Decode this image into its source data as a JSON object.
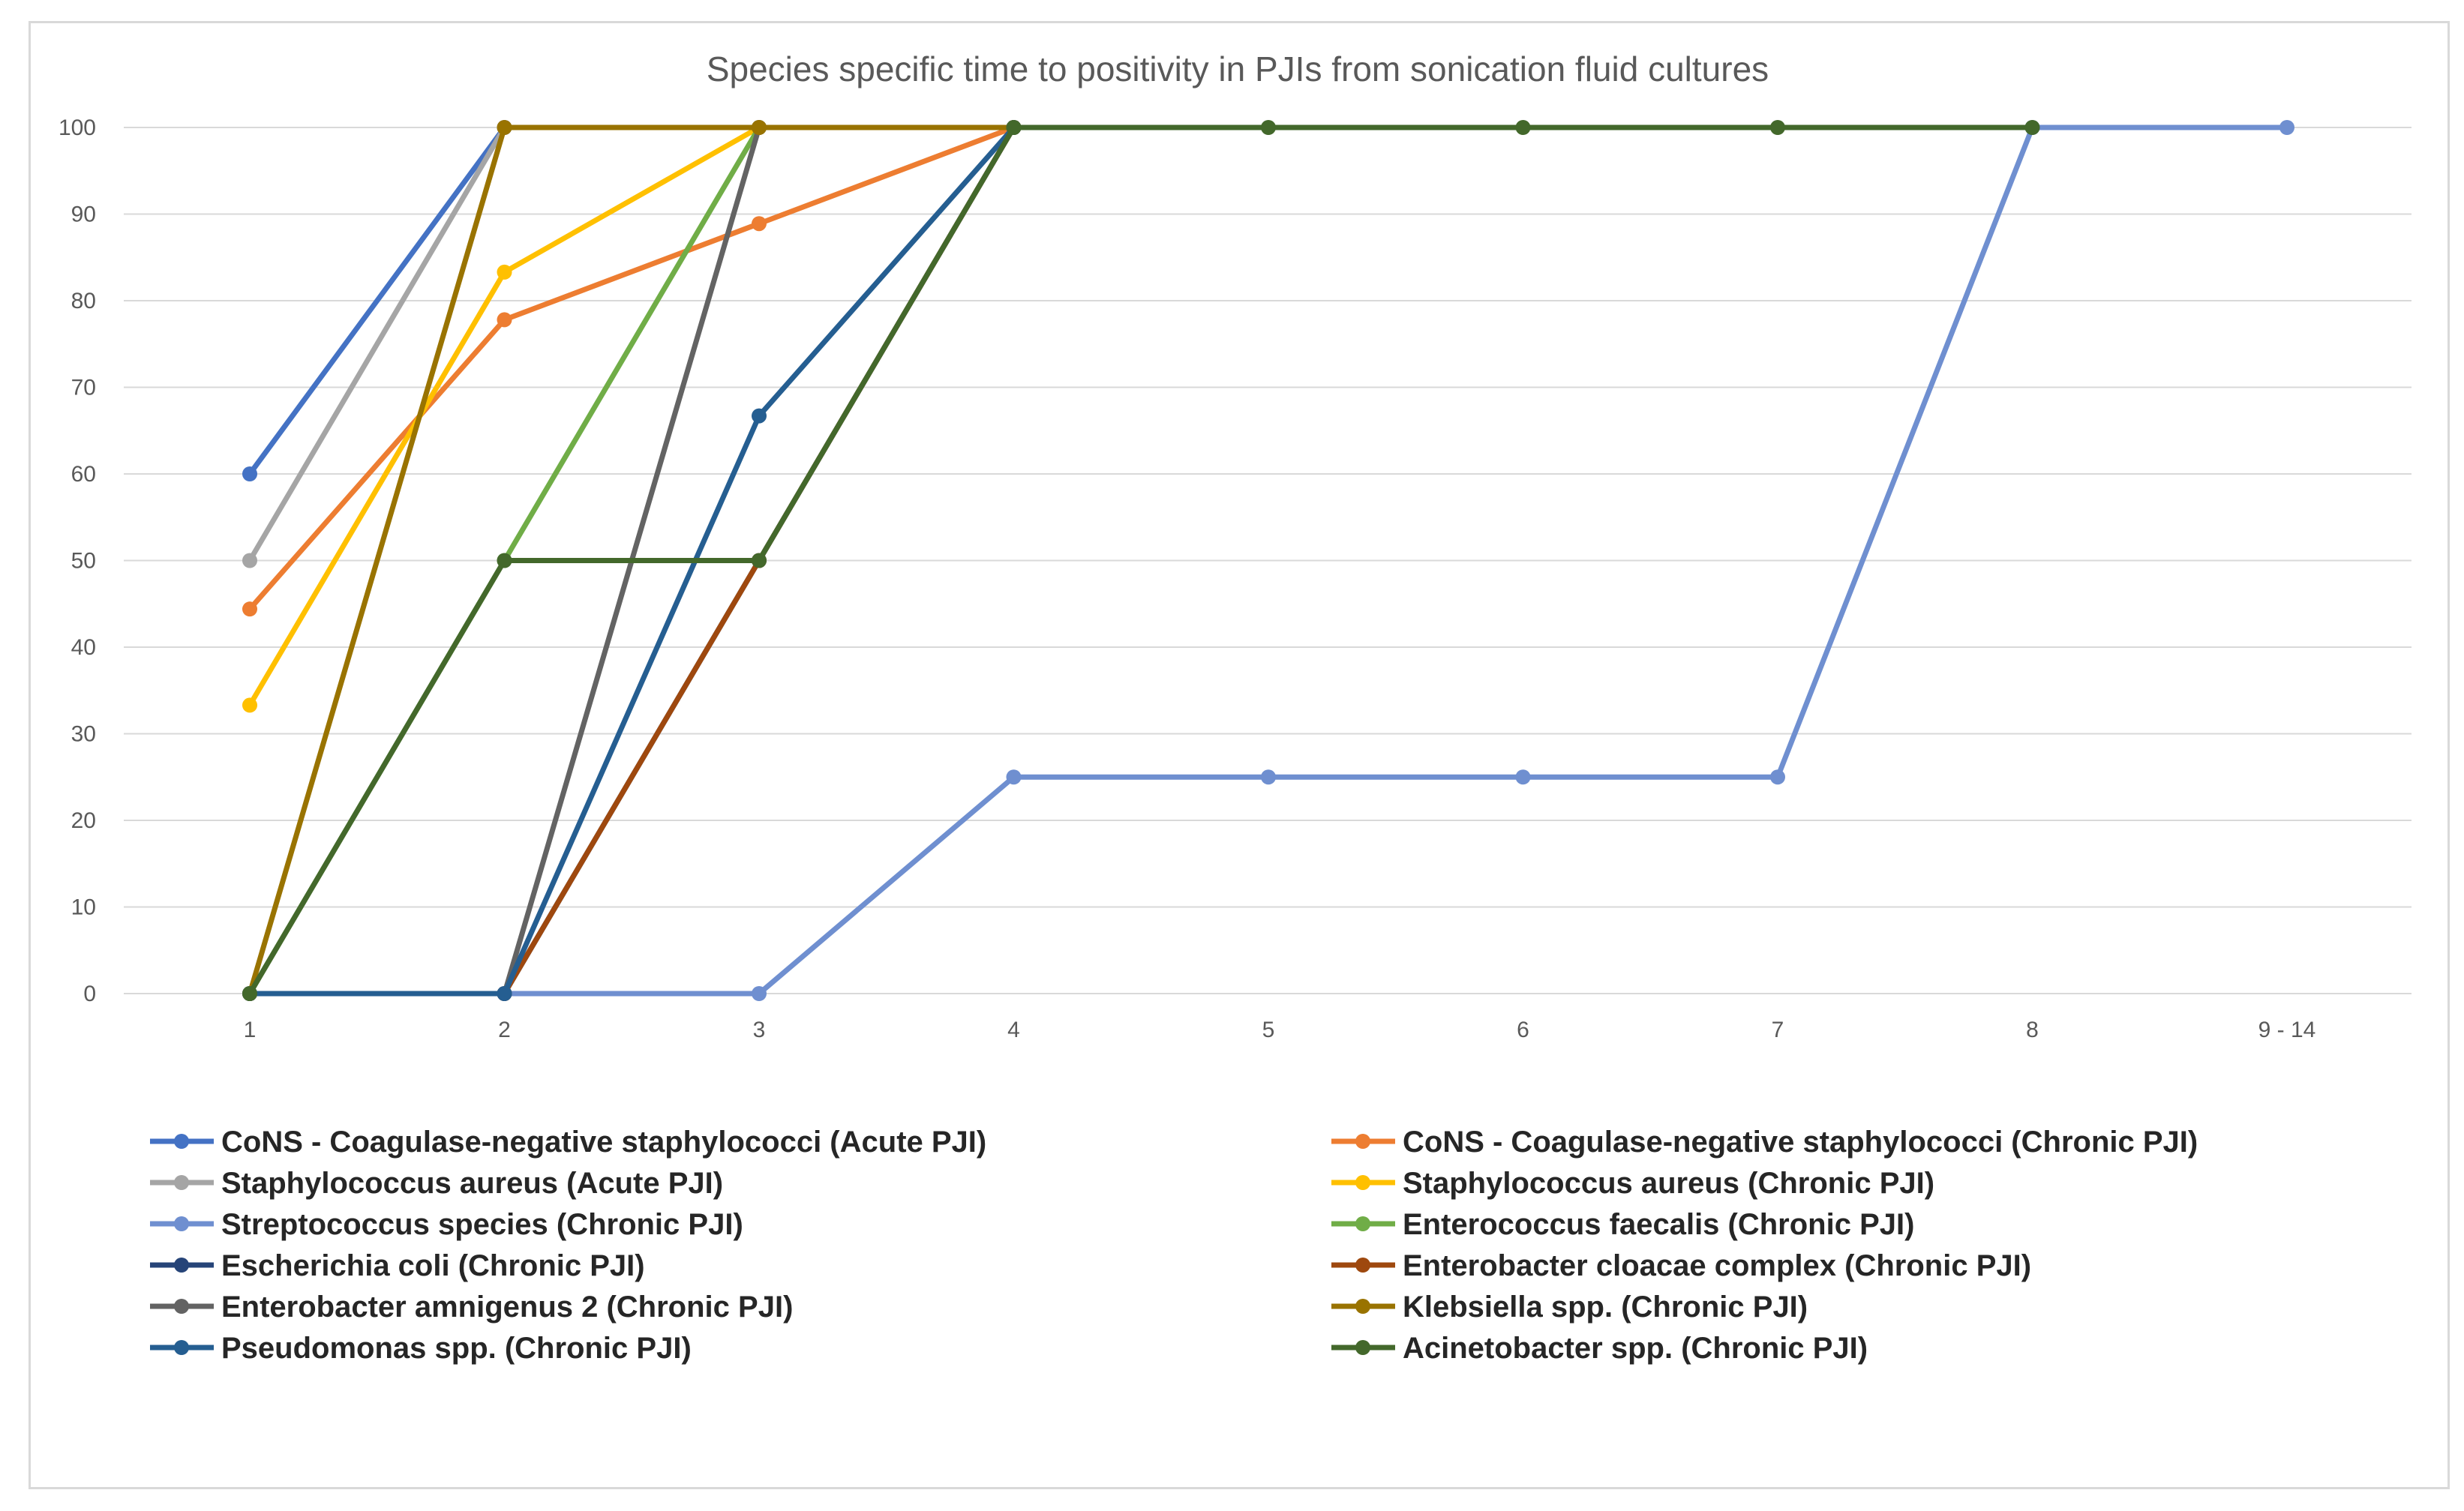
{
  "chart_data": {
    "type": "line",
    "title": "Species specific time to positivity in PJIs from sonication fluid cultures",
    "xlabel": "",
    "ylabel": "",
    "categories": [
      "1",
      "2",
      "3",
      "4",
      "5",
      "6",
      "7",
      "8",
      "9 - 14"
    ],
    "ylim": [
      0,
      100
    ],
    "yticks": [
      0,
      10,
      20,
      30,
      40,
      50,
      60,
      70,
      80,
      90,
      100
    ],
    "grid": true,
    "legend_position": "bottom",
    "series": [
      {
        "name": "CoNS - Coagulase-negative staphylococci (Acute PJI)",
        "color": "#4472c4",
        "values": [
          60,
          100,
          null,
          null,
          null,
          null,
          null,
          null,
          null
        ]
      },
      {
        "name": "CoNS - Coagulase-negative staphylococci (Chronic PJI)",
        "color": "#ed7d31",
        "values": [
          44.4,
          77.8,
          88.9,
          100,
          null,
          null,
          null,
          null,
          null
        ]
      },
      {
        "name": "Staphylococcus aureus (Acute PJI)",
        "color": "#a5a5a5",
        "values": [
          50,
          100,
          null,
          null,
          null,
          null,
          null,
          null,
          null
        ]
      },
      {
        "name": "Staphylococcus aureus (Chronic PJI)",
        "color": "#ffc000",
        "values": [
          33.3,
          83.3,
          100,
          null,
          null,
          null,
          null,
          null,
          null
        ]
      },
      {
        "name": "Streptococcus species (Chronic PJI)",
        "color": "#6f8fd0",
        "values": [
          0,
          0,
          0,
          25,
          25,
          25,
          25,
          100,
          100
        ]
      },
      {
        "name": "Enterococcus faecalis (Chronic PJI)",
        "color": "#70ad47",
        "values": [
          0,
          50,
          100,
          null,
          null,
          null,
          null,
          null,
          null
        ]
      },
      {
        "name": "Escherichia coli (Chronic PJI)",
        "color": "#264478",
        "values": [
          0,
          0,
          50,
          100,
          null,
          null,
          null,
          null,
          null
        ]
      },
      {
        "name": "Enterobacter cloacae complex (Chronic PJI)",
        "color": "#9e480e",
        "values": [
          0,
          0,
          50,
          100,
          null,
          null,
          null,
          null,
          null
        ]
      },
      {
        "name": "Enterobacter amnigenus 2 (Chronic PJI)",
        "color": "#636363",
        "values": [
          0,
          0,
          100,
          null,
          null,
          null,
          null,
          null,
          null
        ]
      },
      {
        "name": "Klebsiella spp. (Chronic PJI)",
        "color": "#997300",
        "values": [
          0,
          100,
          100,
          100,
          null,
          null,
          null,
          null,
          null
        ]
      },
      {
        "name": "Pseudomonas spp. (Chronic PJI)",
        "color": "#255e91",
        "values": [
          0,
          0,
          66.7,
          100,
          null,
          null,
          null,
          null,
          null
        ]
      },
      {
        "name": "Acinetobacter spp. (Chronic PJI)",
        "color": "#43682b",
        "values": [
          0,
          50,
          50,
          100,
          100,
          100,
          100,
          100,
          null
        ]
      }
    ]
  }
}
